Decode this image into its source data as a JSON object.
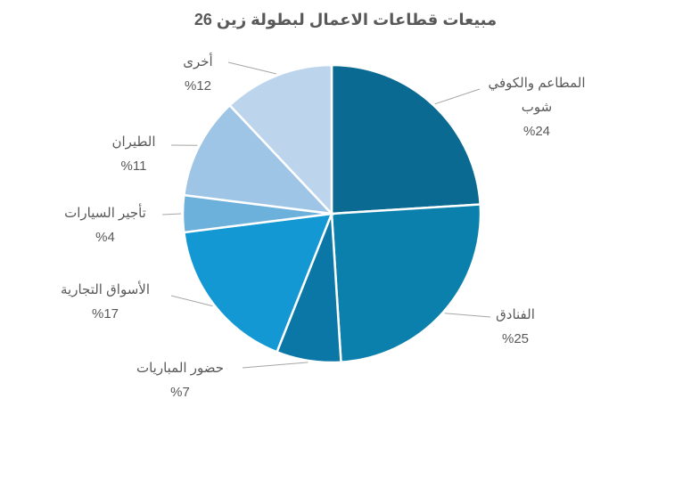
{
  "chart_data": {
    "type": "pie",
    "title": "مبيعات قطاعات الاعمال لبطولة زين 26",
    "categories": [
      "المطاعم والكوفي شوب",
      "الفنادق",
      "حضور المباريات",
      "الأسواق التجارية",
      "تأجير السيارات",
      "الطيران",
      "أخرى"
    ],
    "values": [
      24,
      25,
      7,
      17,
      4,
      11,
      12
    ],
    "value_labels": [
      "%24",
      "%25",
      "%7",
      "%17",
      "%4",
      "%11",
      "%12"
    ],
    "colors": [
      "#0a6a92",
      "#0b80ac",
      "#0b77a6",
      "#1398d3",
      "#6cb0dc",
      "#9ec5e5",
      "#bdd5ec"
    ]
  }
}
